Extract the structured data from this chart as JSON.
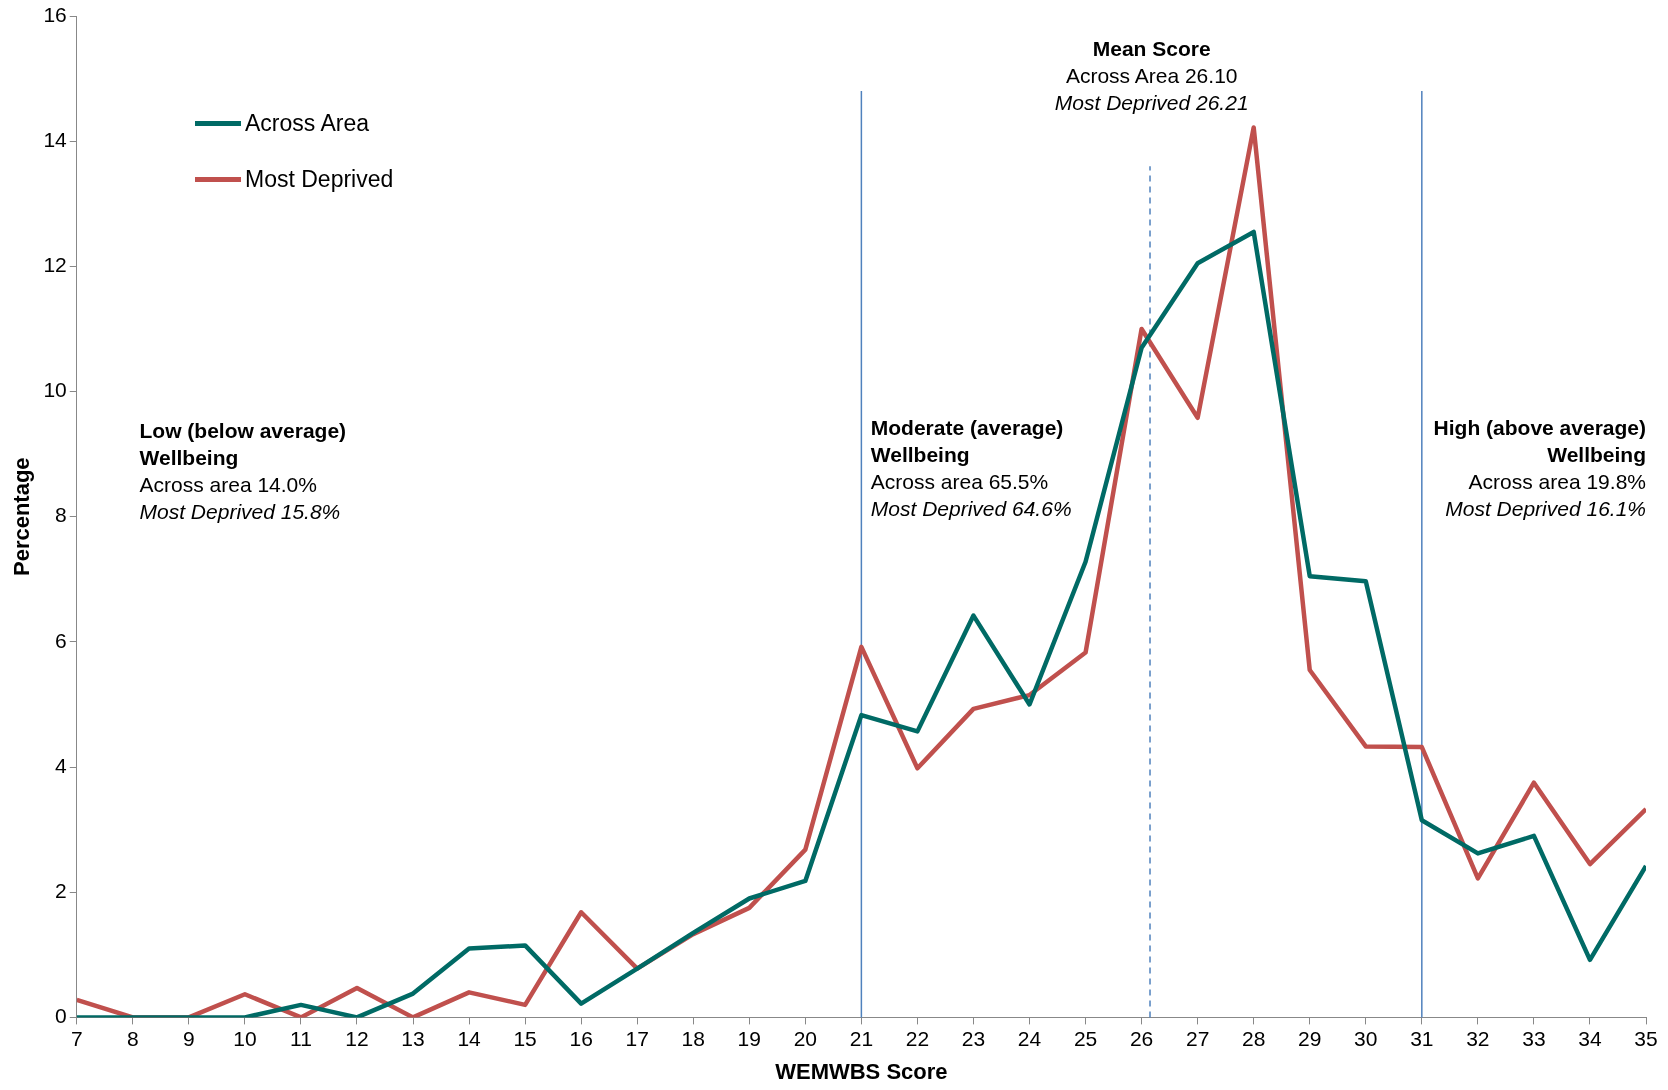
{
  "chart_data": {
    "type": "line",
    "xlabel": "WEMWBS Score",
    "ylabel": "Percentage",
    "x": [
      7,
      8,
      9,
      10,
      11,
      12,
      13,
      14,
      15,
      16,
      17,
      18,
      19,
      20,
      21,
      22,
      23,
      24,
      25,
      26,
      27,
      28,
      29,
      30,
      31,
      32,
      33,
      34,
      35
    ],
    "series": [
      {
        "name": "Across Area",
        "color": "#006a65",
        "values": [
          0,
          0,
          0,
          0,
          0.2,
          0,
          0.38,
          1.1,
          1.15,
          0.22,
          0.78,
          1.35,
          1.9,
          2.18,
          4.83,
          4.57,
          6.42,
          5.0,
          7.28,
          10.7,
          12.05,
          12.55,
          7.05,
          6.97,
          3.15,
          2.62,
          2.9,
          0.92,
          2.42
        ]
      },
      {
        "name": "Most Deprived",
        "color": "#c0504d",
        "values": [
          0.28,
          0,
          0,
          0.37,
          0,
          0.47,
          0,
          0.4,
          0.2,
          1.68,
          0.78,
          1.33,
          1.75,
          2.68,
          5.92,
          3.98,
          4.93,
          5.15,
          5.83,
          11.0,
          9.58,
          14.22,
          5.55,
          4.33,
          4.32,
          2.22,
          3.75,
          2.45,
          3.33
        ]
      }
    ],
    "xlim": [
      7,
      35
    ],
    "xticks": [
      7,
      8,
      9,
      10,
      11,
      12,
      13,
      14,
      15,
      16,
      17,
      18,
      19,
      20,
      21,
      22,
      23,
      24,
      25,
      26,
      27,
      28,
      29,
      30,
      31,
      32,
      33,
      34,
      35
    ],
    "ylim": [
      0,
      16
    ],
    "yticks": [
      0,
      2,
      4,
      6,
      8,
      10,
      12,
      14,
      16
    ],
    "grid": false,
    "legend": "top left",
    "marker": "none",
    "line_style": "solid",
    "ref_lines": [
      {
        "axis": "x",
        "value": 21,
        "color": "#4f81bd",
        "line_style": "solid"
      },
      {
        "axis": "x",
        "value": 26.15,
        "color": "#4f81bd",
        "line_style": "dashed"
      },
      {
        "axis": "x",
        "value": 31,
        "color": "#4f81bd",
        "line_style": "solid"
      }
    ],
    "annotations": [
      "Low (below average)\nWellbeing\nAcross area 14.0%\nMost Deprived 15.8%",
      "Moderate (average)\nWellbeing\nAcross area 65.5%\nMost Deprived 64.6%",
      "High (above average)\nWellbeing\nAcross area 19.8%\nMost Deprived 16.1%",
      "Mean Score\nAcross Area 26.10\nMost Deprived 26.21"
    ]
  }
}
